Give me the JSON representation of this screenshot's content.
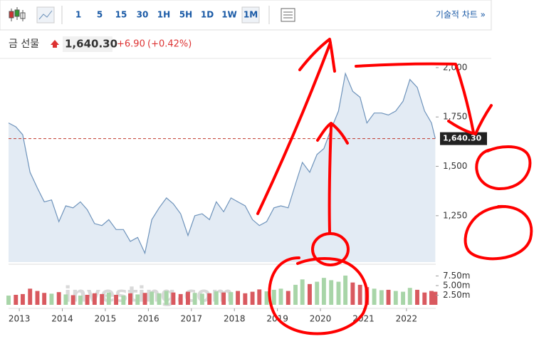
{
  "toolbar": {
    "intervals": [
      "1",
      "5",
      "15",
      "30",
      "1H",
      "5H",
      "1D",
      "1W",
      "1M"
    ],
    "technical": "기술적 차트 »"
  },
  "quote": {
    "name": "금 선물",
    "price": "1,640.30",
    "change": "+6.90",
    "change_pct": "(+0.42%)"
  },
  "watermark": "investing.com",
  "chart_data": {
    "type": "line",
    "color": "#6e93bb",
    "fill": "#e3ebf4",
    "x": [
      2012.75,
      2012.92,
      2013.08,
      2013.25,
      2013.42,
      2013.58,
      2013.75,
      2013.92,
      2014.08,
      2014.25,
      2014.42,
      2014.58,
      2014.75,
      2014.92,
      2015.08,
      2015.25,
      2015.42,
      2015.58,
      2015.75,
      2015.92,
      2016.08,
      2016.25,
      2016.42,
      2016.58,
      2016.75,
      2016.92,
      2017.08,
      2017.25,
      2017.42,
      2017.58,
      2017.75,
      2017.92,
      2018.08,
      2018.25,
      2018.42,
      2018.58,
      2018.75,
      2018.92,
      2019.08,
      2019.25,
      2019.42,
      2019.58,
      2019.75,
      2019.92,
      2020.08,
      2020.25,
      2020.42,
      2020.58,
      2020.75,
      2020.92,
      2021.08,
      2021.25,
      2021.42,
      2021.58,
      2021.75,
      2021.92,
      2022.08,
      2022.25,
      2022.42,
      2022.58,
      2022.67
    ],
    "values": [
      1720,
      1700,
      1660,
      1470,
      1390,
      1320,
      1330,
      1220,
      1300,
      1290,
      1320,
      1280,
      1210,
      1200,
      1230,
      1180,
      1180,
      1120,
      1140,
      1060,
      1230,
      1290,
      1340,
      1310,
      1260,
      1150,
      1250,
      1260,
      1230,
      1320,
      1270,
      1340,
      1320,
      1300,
      1230,
      1200,
      1220,
      1290,
      1300,
      1290,
      1410,
      1520,
      1470,
      1560,
      1590,
      1690,
      1780,
      1970,
      1880,
      1850,
      1720,
      1770,
      1770,
      1760,
      1780,
      1830,
      1940,
      1900,
      1780,
      1720,
      1640.3
    ],
    "xlim": [
      2012.75,
      2022.68
    ],
    "xticks": [
      2013,
      2014,
      2015,
      2016,
      2017,
      2018,
      2019,
      2020,
      2021,
      2022
    ],
    "ylim": [
      1015,
      2025
    ],
    "yticks": [
      {
        "value": 1250,
        "label": "1,250"
      },
      {
        "value": 1500,
        "label": "1,500"
      },
      {
        "value": 1750,
        "label": "1,750"
      },
      {
        "value": 2000,
        "label": "2,000"
      }
    ],
    "last_price": {
      "value": 1640.3,
      "label": "1,640.30"
    },
    "volume": {
      "up_color": "#a8d5a8",
      "down_color": "#d9595f",
      "values": [
        2.4,
        2.6,
        2.8,
        4.2,
        3.6,
        3.1,
        2.9,
        3.3,
        2.7,
        2.5,
        2.4,
        2.6,
        3.0,
        2.8,
        3.2,
        2.6,
        2.4,
        3.0,
        2.7,
        3.1,
        3.4,
        3.0,
        3.6,
        3.2,
        2.8,
        3.4,
        3.1,
        2.9,
        3.0,
        3.5,
        3.2,
        3.3,
        3.6,
        3.0,
        3.4,
        4.0,
        3.5,
        3.9,
        4.2,
        3.6,
        5.2,
        6.6,
        5.4,
        6.0,
        7.0,
        6.4,
        6.0,
        7.6,
        5.8,
        5.2,
        4.6,
        4.2,
        3.8,
        3.9,
        3.6,
        3.4,
        4.4,
        3.9,
        3.2,
        3.6,
        3.4
      ],
      "ylim": [
        0,
        9.25
      ],
      "yticks": [
        {
          "value": 2.5,
          "label": "2.50m"
        },
        {
          "value": 5,
          "label": "5.00m"
        },
        {
          "value": 7.5,
          "label": "7.50m"
        }
      ]
    }
  }
}
